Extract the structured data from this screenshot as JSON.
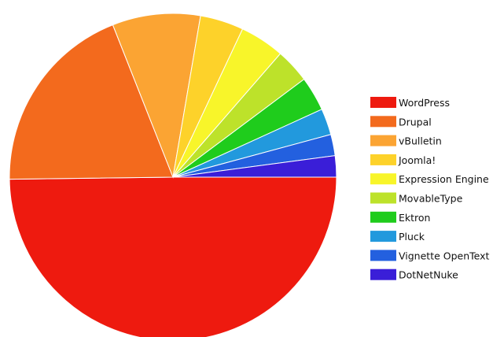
{
  "chart_data": {
    "type": "pie",
    "title": "",
    "legend_position": "right",
    "start": "three o'clock, clockwise",
    "slices": [
      {
        "label": "WordPress",
        "value": 49.8,
        "color": "#ee1a0f"
      },
      {
        "label": "Drupal",
        "value": 19.2,
        "color": "#f36a1d"
      },
      {
        "label": "vBulletin",
        "value": 8.7,
        "color": "#fba433"
      },
      {
        "label": "Joomla!",
        "value": 4.3,
        "color": "#fdd22a"
      },
      {
        "label": "Expression Engine",
        "value": 4.4,
        "color": "#f8f52a"
      },
      {
        "label": "MovableType",
        "value": 3.4,
        "color": "#bde22a"
      },
      {
        "label": "Ektron",
        "value": 3.4,
        "color": "#1fcc1c"
      },
      {
        "label": "Pluck",
        "value": 2.6,
        "color": "#2299dd"
      },
      {
        "label": "Vignette OpenText",
        "value": 2.1,
        "color": "#2360df"
      },
      {
        "label": "DotNetNuke",
        "value": 2.1,
        "color": "#3a1ed8"
      }
    ]
  }
}
